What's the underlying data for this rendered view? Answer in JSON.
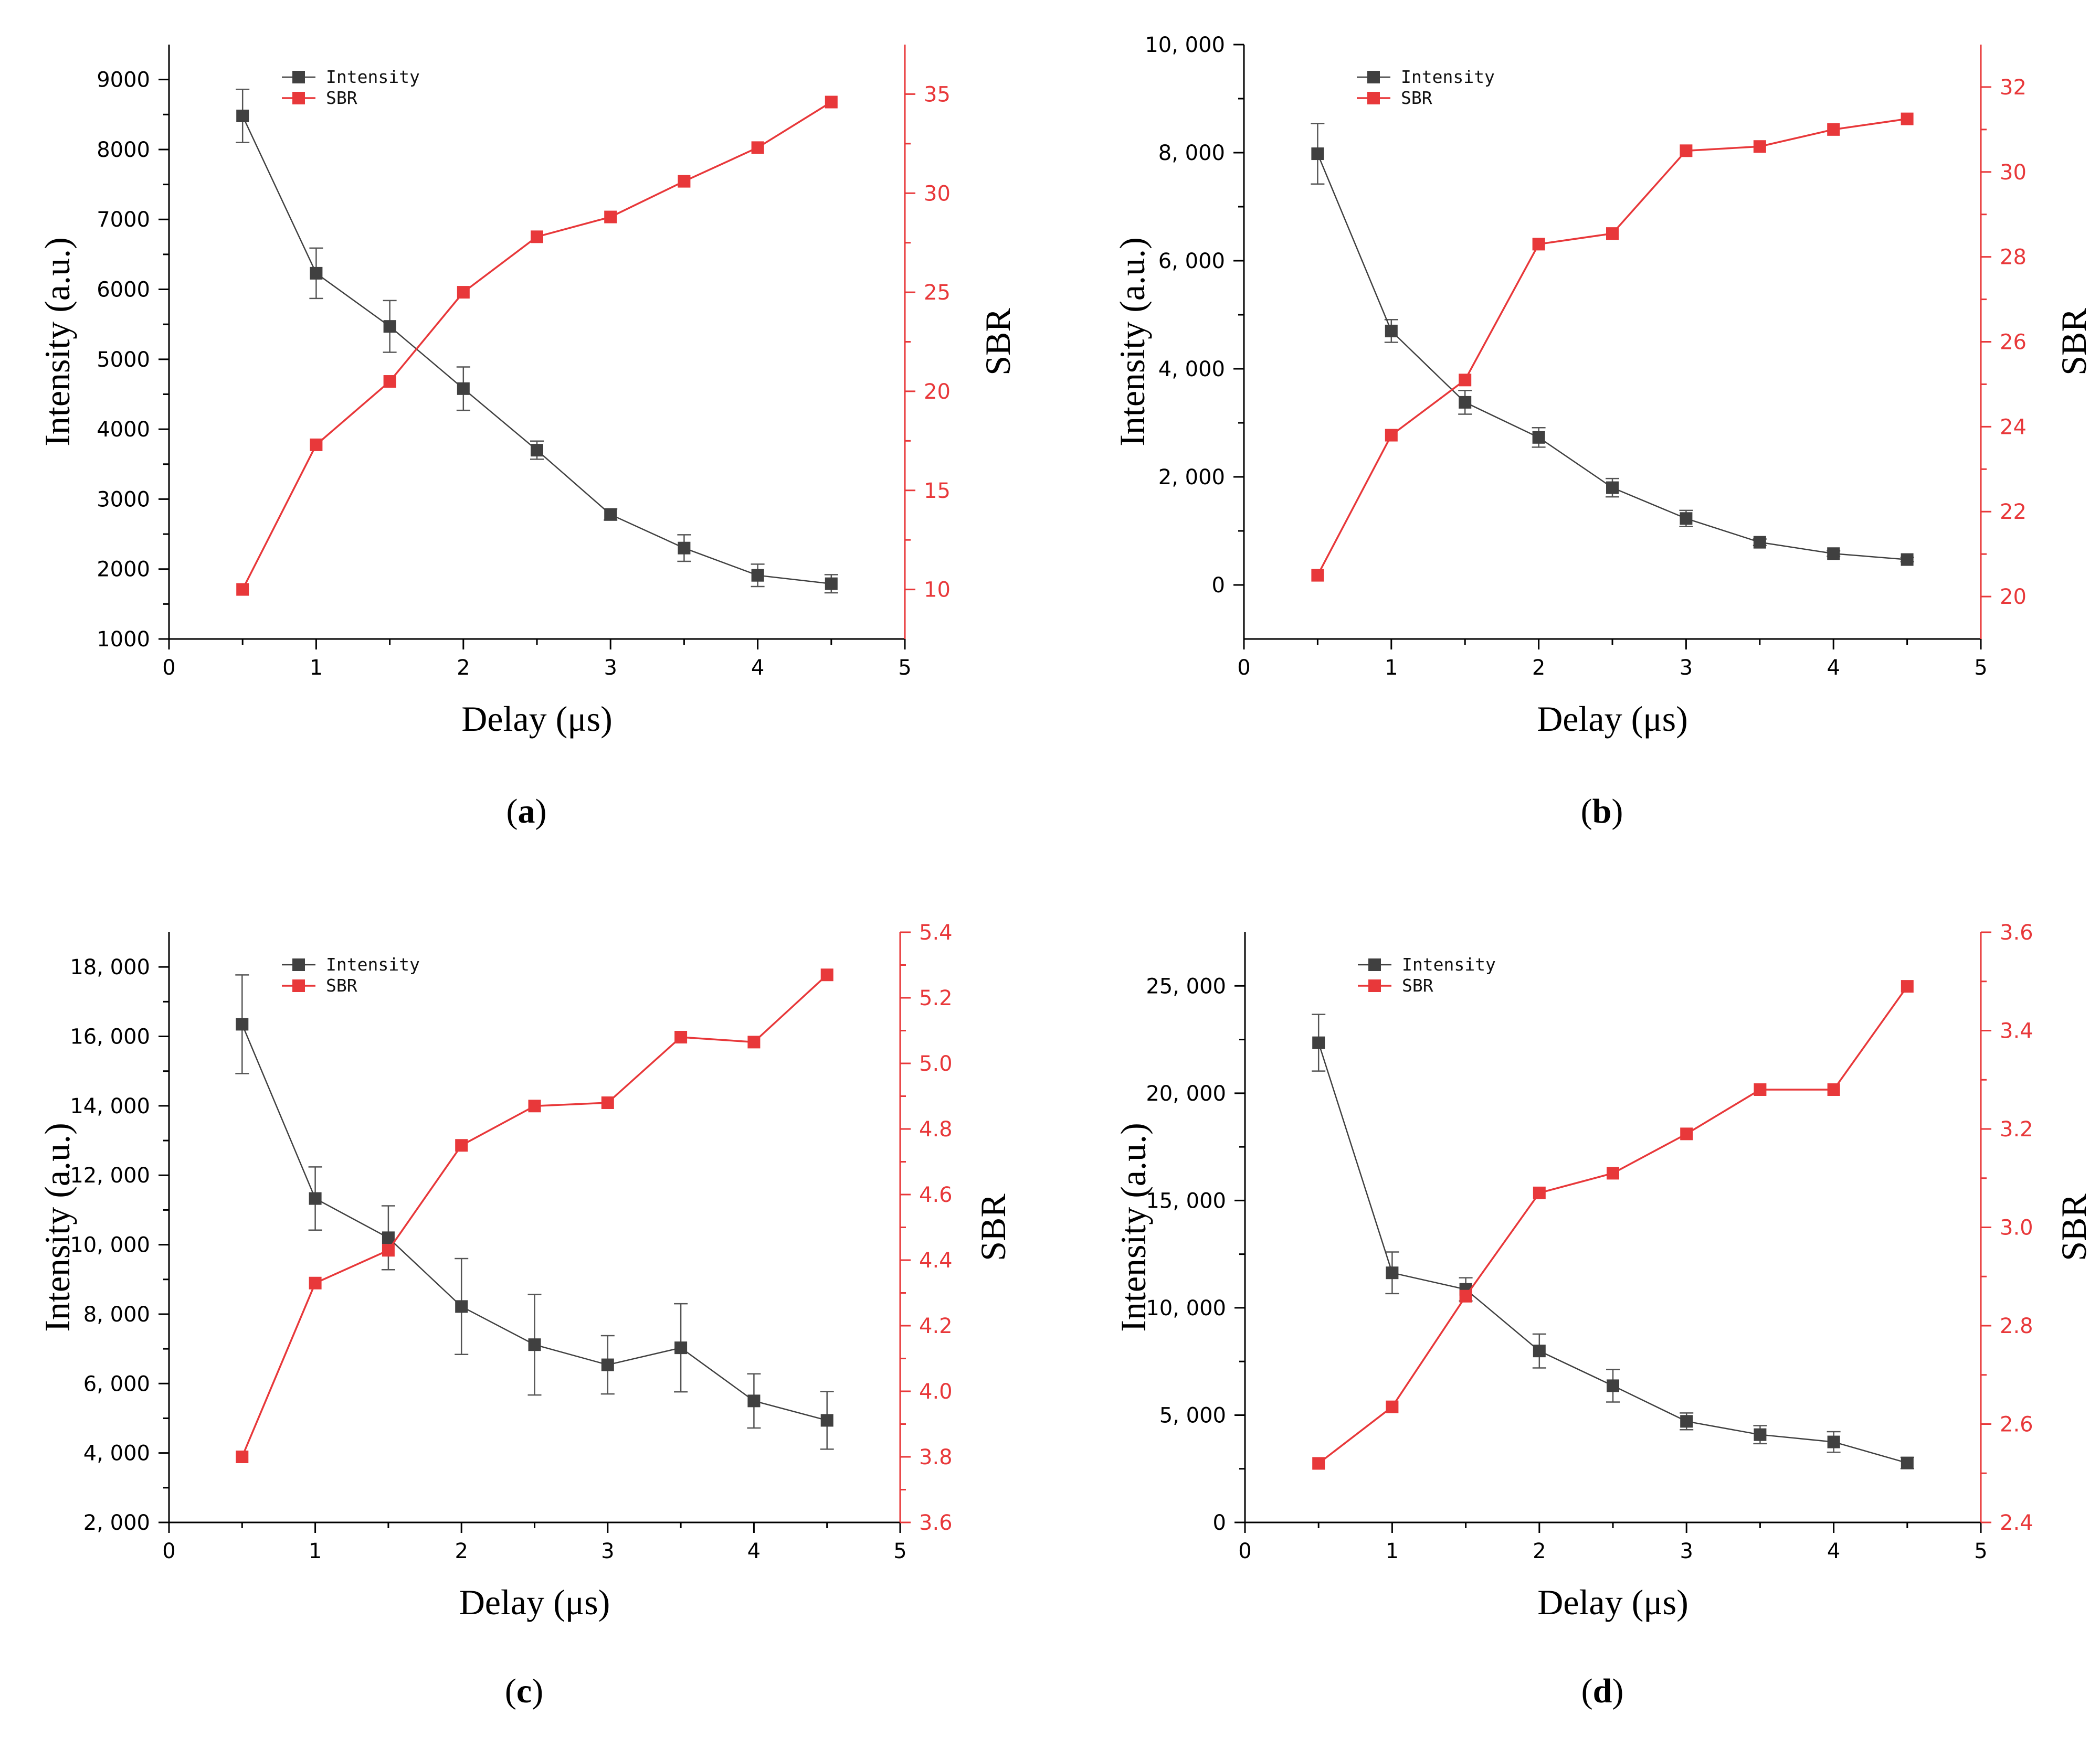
{
  "chart_data": [
    {
      "type": "line",
      "panel_label": "a",
      "caption": {
        "open": "(",
        "letter": "a",
        "close": ")"
      },
      "xlabel": "Delay (μs)",
      "ylabel_left": "Intensity (a.u.)",
      "ylabel_right": "SBR",
      "x_ticks": [
        "0",
        "1",
        "2",
        "3",
        "4",
        "5"
      ],
      "xlim": [
        0,
        5
      ],
      "y_left_lim": [
        1000,
        9500
      ],
      "y_left_ticks": [
        1000,
        2000,
        3000,
        4000,
        5000,
        6000,
        7000,
        8000,
        9000
      ],
      "y_left_tick_labels": [
        "1000",
        "2000",
        "3000",
        "4000",
        "5000",
        "6000",
        "7000",
        "8000",
        "9000"
      ],
      "y_right_lim": [
        7.5,
        37.5
      ],
      "y_right_ticks": [
        10,
        15,
        20,
        25,
        30,
        35
      ],
      "y_right_tick_labels": [
        "10",
        "15",
        "20",
        "25",
        "30",
        "35"
      ],
      "x": [
        0.5,
        1,
        1.5,
        2,
        2.5,
        3,
        3.5,
        4,
        4.5
      ],
      "series": [
        {
          "name": "Intensity",
          "axis": "left",
          "color": "#404040",
          "values": [
            8480,
            6230,
            5470,
            4580,
            3700,
            2780,
            2300,
            1910,
            1790
          ],
          "errors": [
            380,
            360,
            370,
            310,
            130,
            80,
            190,
            160,
            130
          ]
        },
        {
          "name": "SBR",
          "axis": "right",
          "color": "#e8383a",
          "values": [
            10.0,
            17.3,
            20.5,
            25.0,
            27.8,
            28.8,
            30.6,
            32.3,
            34.6
          ]
        }
      ],
      "legend": [
        "Intensity",
        "SBR"
      ],
      "legend_position": "top-left"
    },
    {
      "type": "line",
      "panel_label": "b",
      "caption": {
        "open": "(",
        "letter": "b",
        "close": ")"
      },
      "xlabel": "Delay (μs)",
      "ylabel_left": "Intensity (a.u.)",
      "ylabel_right": "SBR",
      "x_ticks": [
        "0",
        "1",
        "2",
        "3",
        "4",
        "5"
      ],
      "xlim": [
        0,
        5
      ],
      "y_left_lim": [
        -1000,
        10000
      ],
      "y_left_ticks": [
        0,
        2000,
        4000,
        6000,
        8000,
        10000
      ],
      "y_left_tick_labels": [
        "0",
        "2, 000",
        "4, 000",
        "6, 000",
        "8, 000",
        "10, 000"
      ],
      "y_right_lim": [
        19,
        33
      ],
      "y_right_ticks": [
        20,
        22,
        24,
        26,
        28,
        30,
        32
      ],
      "y_right_tick_labels": [
        "20",
        "22",
        "24",
        "26",
        "28",
        "30",
        "32"
      ],
      "x": [
        0.5,
        1,
        1.5,
        2,
        2.5,
        3,
        3.5,
        4,
        4.5
      ],
      "series": [
        {
          "name": "Intensity",
          "axis": "left",
          "color": "#404040",
          "values": [
            7980,
            4700,
            3380,
            2730,
            1800,
            1230,
            790,
            580,
            470
          ],
          "errors": [
            560,
            210,
            220,
            180,
            170,
            150,
            60,
            50,
            40
          ]
        },
        {
          "name": "SBR",
          "axis": "right",
          "color": "#e8383a",
          "values": [
            20.5,
            23.8,
            25.1,
            28.3,
            28.55,
            30.5,
            30.6,
            31.0,
            31.25
          ]
        }
      ],
      "legend": [
        "Intensity",
        "SBR"
      ],
      "legend_position": "top-left"
    },
    {
      "type": "line",
      "panel_label": "c",
      "caption": {
        "open": "(",
        "letter": "c",
        "close": ")"
      },
      "xlabel": "Delay (μs)",
      "ylabel_left": "Intensity (a.u.)",
      "ylabel_right": "SBR",
      "x_ticks": [
        "0",
        "1",
        "2",
        "3",
        "4",
        "5"
      ],
      "xlim": [
        0,
        5
      ],
      "y_left_lim": [
        2000,
        19000
      ],
      "y_left_ticks": [
        2000,
        4000,
        6000,
        8000,
        10000,
        12000,
        14000,
        16000,
        18000
      ],
      "y_left_tick_labels": [
        "2, 000",
        "4, 000",
        "6, 000",
        "8, 000",
        "10, 000",
        "12, 000",
        "14, 000",
        "16, 000",
        "18, 000"
      ],
      "y_right_lim": [
        3.6,
        5.4
      ],
      "y_right_ticks": [
        3.6,
        3.8,
        4.0,
        4.2,
        4.4,
        4.6,
        4.8,
        5.0,
        5.2,
        5.4
      ],
      "y_right_tick_labels": [
        "3.6",
        "3.8",
        "4.0",
        "4.2",
        "4.4",
        "4.6",
        "4.8",
        "5.0",
        "5.2",
        "5.4"
      ],
      "x": [
        0.5,
        1,
        1.5,
        2,
        2.5,
        3,
        3.5,
        4,
        4.5
      ],
      "series": [
        {
          "name": "Intensity",
          "axis": "left",
          "color": "#404040",
          "values": [
            16350,
            11330,
            10200,
            8220,
            7120,
            6540,
            7030,
            5500,
            4940
          ],
          "errors": [
            1420,
            910,
            920,
            1380,
            1450,
            840,
            1270,
            780,
            830
          ]
        },
        {
          "name": "SBR",
          "axis": "right",
          "color": "#e8383a",
          "values": [
            3.8,
            4.33,
            4.43,
            4.75,
            4.87,
            4.88,
            5.08,
            5.065,
            5.27
          ]
        }
      ],
      "legend": [
        "Intensity",
        "SBR"
      ],
      "legend_position": "top-left"
    },
    {
      "type": "line",
      "panel_label": "d",
      "caption": {
        "open": "(",
        "letter": "d",
        "close": ")"
      },
      "xlabel": "Delay (μs)",
      "ylabel_left": "Intensity (a.u.)",
      "ylabel_right": "SBR",
      "x_ticks": [
        "0",
        "1",
        "2",
        "3",
        "4",
        "5"
      ],
      "xlim": [
        0,
        5
      ],
      "y_left_lim": [
        0,
        27500
      ],
      "y_left_ticks": [
        0,
        5000,
        10000,
        15000,
        20000,
        25000
      ],
      "y_left_tick_labels": [
        "0",
        "5, 000",
        "10, 000",
        "15, 000",
        "20, 000",
        "25, 000"
      ],
      "y_right_lim": [
        2.4,
        3.6
      ],
      "y_right_ticks": [
        2.4,
        2.6,
        2.8,
        3.0,
        3.2,
        3.4,
        3.6
      ],
      "y_right_tick_labels": [
        "2.4",
        "2.6",
        "2.8",
        "3.0",
        "3.2",
        "3.4",
        "3.6"
      ],
      "x": [
        0.5,
        1,
        1.5,
        2,
        2.5,
        3,
        3.5,
        4,
        4.5
      ],
      "series": [
        {
          "name": "Intensity",
          "axis": "left",
          "color": "#404040",
          "values": [
            22350,
            11630,
            10860,
            7990,
            6370,
            4710,
            4090,
            3750,
            2770
          ],
          "errors": [
            1320,
            970,
            540,
            790,
            760,
            390,
            420,
            480,
            260
          ]
        },
        {
          "name": "SBR",
          "axis": "right",
          "color": "#e8383a",
          "values": [
            2.52,
            2.635,
            2.86,
            3.07,
            3.11,
            3.19,
            3.28,
            3.28,
            3.49
          ]
        }
      ],
      "legend": [
        "Intensity",
        "SBR"
      ],
      "legend_position": "top-left"
    }
  ]
}
